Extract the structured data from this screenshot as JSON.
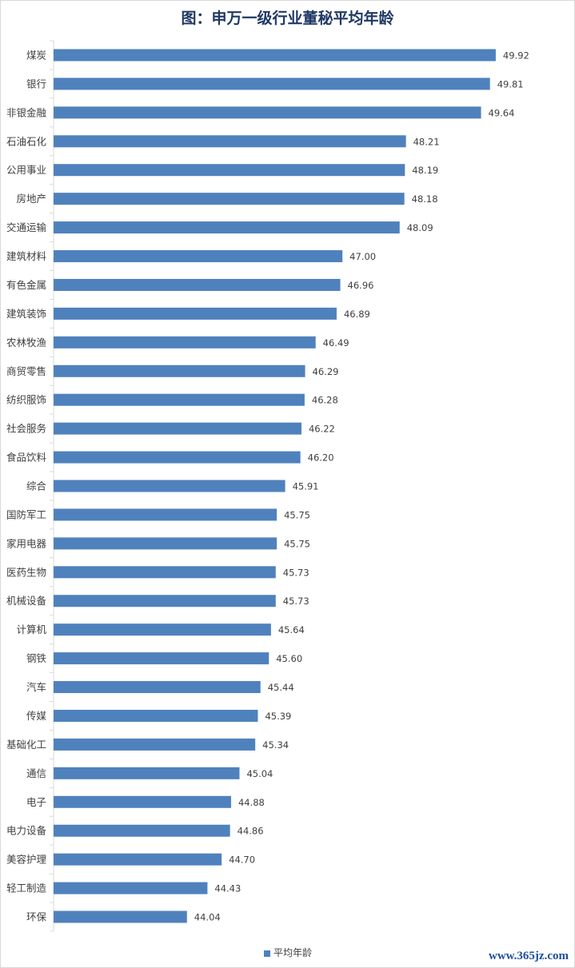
{
  "title": "图：申万一级行业董秘平均年龄",
  "watermark": "www.365jz.com",
  "colors": {
    "bar": "#4f81bd",
    "title": "#1f3864",
    "axis": "#d9d9d9",
    "text": "#404040"
  },
  "chart_data": {
    "type": "bar",
    "orientation": "horizontal",
    "categories": [
      "煤炭",
      "银行",
      "非银金融",
      "石油石化",
      "公用事业",
      "房地产",
      "交通运输",
      "建筑材料",
      "有色金属",
      "建筑装饰",
      "农林牧渔",
      "商贸零售",
      "纺织服饰",
      "社会服务",
      "食品饮料",
      "综合",
      "国防军工",
      "家用电器",
      "医药生物",
      "机械设备",
      "计算机",
      "钢铁",
      "汽车",
      "传媒",
      "基础化工",
      "通信",
      "电子",
      "电力设备",
      "美容护理",
      "轻工制造",
      "环保"
    ],
    "series": [
      {
        "name": "平均年龄",
        "values": [
          49.92,
          49.81,
          49.64,
          48.21,
          48.19,
          48.18,
          48.09,
          47.0,
          46.96,
          46.89,
          46.49,
          46.29,
          46.28,
          46.22,
          46.2,
          45.91,
          45.75,
          45.75,
          45.73,
          45.73,
          45.64,
          45.6,
          45.44,
          45.39,
          45.34,
          45.04,
          44.88,
          44.86,
          44.7,
          44.43,
          44.04
        ],
        "labels": [
          "49.92",
          "49.81",
          "49.64",
          "48.21",
          "48.19",
          "48.18",
          "48.09",
          "47.00",
          "46.96",
          "46.89",
          "46.49",
          "46.29",
          "46.28",
          "46.22",
          "46.20",
          "45.91",
          "45.75",
          "45.75",
          "45.73",
          "45.73",
          "45.64",
          "45.60",
          "45.44",
          "45.39",
          "45.34",
          "45.04",
          "44.88",
          "44.86",
          "44.70",
          "44.43",
          "44.04"
        ]
      }
    ],
    "xlim": [
      41.5,
      50.5
    ],
    "legend_position": "bottom",
    "grid": false
  }
}
